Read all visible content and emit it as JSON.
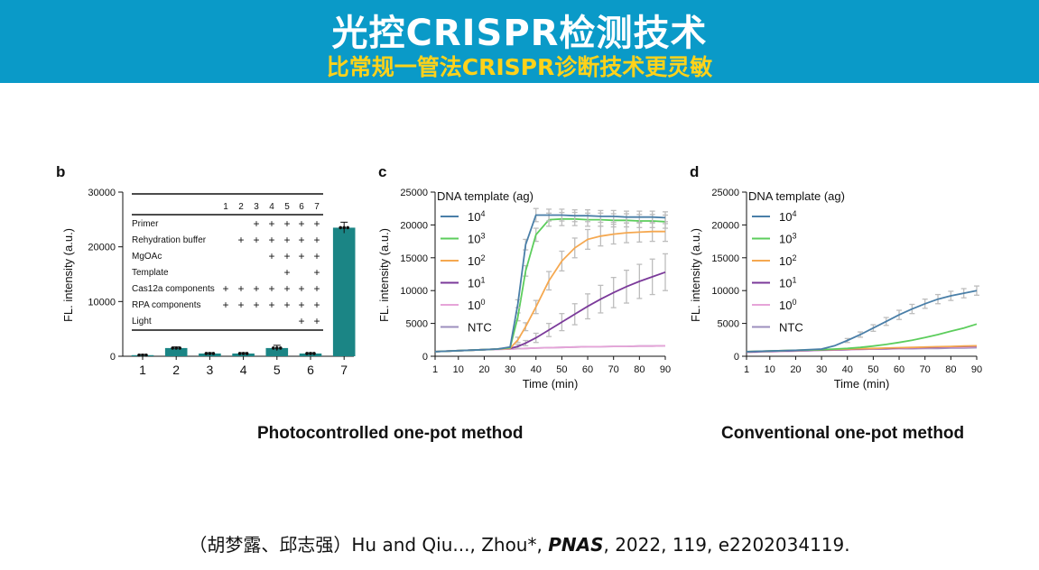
{
  "banner": {
    "title": "光控CRISPR检测技术",
    "subtitle": "比常规一管法CRISPR诊断技术更灵敏"
  },
  "captions": {
    "left": "Photocontrolled one-pot method",
    "right": "Conventional one-pot method"
  },
  "citation": {
    "prefix": "（胡梦露、邱志强）Hu and Qiu..., Zhou*, ",
    "journal": "PNAS",
    "suffix": ", 2022, 119, e2202034119."
  },
  "colors": {
    "banner_bg": "#0a9ac8",
    "subtitle": "#ffd21a",
    "bar": "#1b8585"
  },
  "chart_data": [
    {
      "panel": "b",
      "type": "bar",
      "categories": [
        "1",
        "2",
        "3",
        "4",
        "5",
        "6",
        "7"
      ],
      "values": [
        200,
        1500,
        500,
        500,
        1500,
        500,
        23500
      ],
      "errors": [
        150,
        200,
        150,
        150,
        500,
        150,
        1000
      ],
      "ylabel": "FL. intensity (a.u.)",
      "ylim": [
        0,
        30000
      ],
      "yticks": [
        0,
        10000,
        20000,
        30000
      ],
      "table": {
        "header": [
          "1",
          "2",
          "3",
          "4",
          "5",
          "6",
          "7"
        ],
        "rows": [
          {
            "label": "Primer",
            "marks": [
              "",
              "",
              "+",
              "+",
              "+",
              "+",
              "+"
            ]
          },
          {
            "label": "Rehydration buffer",
            "marks": [
              "",
              "+",
              "+",
              "+",
              "+",
              "+",
              "+"
            ]
          },
          {
            "label": "MgOAc",
            "marks": [
              "",
              "",
              "",
              "+",
              "+",
              "+",
              "+"
            ]
          },
          {
            "label": "Template",
            "marks": [
              "",
              "",
              "",
              "",
              "+",
              "",
              "+"
            ]
          },
          {
            "label": "Cas12a components",
            "marks": [
              "+",
              "+",
              "+",
              "+",
              "+",
              "+",
              "+"
            ]
          },
          {
            "label": "RPA components",
            "marks": [
              "+",
              "+",
              "+",
              "+",
              "+",
              "+",
              "+"
            ]
          },
          {
            "label": "Light",
            "marks": [
              "",
              "",
              "",
              "",
              "",
              "+",
              "+"
            ]
          }
        ]
      }
    },
    {
      "panel": "c",
      "type": "line",
      "xlabel": "Time (min)",
      "ylabel": "FL. intensity (a.u.)",
      "xlim": [
        1,
        90
      ],
      "ylim": [
        0,
        25000
      ],
      "xticks": [
        1,
        10,
        20,
        30,
        40,
        50,
        60,
        70,
        80,
        90
      ],
      "yticks": [
        0,
        5000,
        10000,
        15000,
        20000,
        25000
      ],
      "legend_title": "DNA template (ag)",
      "legend_position": "top-left",
      "x": [
        1,
        10,
        20,
        25,
        30,
        33,
        36,
        40,
        45,
        50,
        55,
        60,
        65,
        70,
        75,
        80,
        85,
        90
      ],
      "series": [
        {
          "name": "10",
          "sup": "4",
          "color": "#4a7fa8",
          "values": [
            700,
            850,
            1000,
            1100,
            1400,
            8000,
            17000,
            21500,
            21500,
            21500,
            21400,
            21400,
            21300,
            21300,
            21200,
            21200,
            21200,
            21100
          ],
          "errors": [
            80,
            80,
            90,
            100,
            150,
            600,
            800,
            1000,
            900,
            900,
            900,
            900,
            900,
            900,
            900,
            900,
            900,
            900
          ]
        },
        {
          "name": "10",
          "sup": "3",
          "color": "#5ccd5c",
          "values": [
            700,
            850,
            1000,
            1100,
            1300,
            6000,
            13000,
            18500,
            20800,
            20900,
            20900,
            20800,
            20800,
            20700,
            20700,
            20600,
            20600,
            20500
          ],
          "errors": [
            80,
            80,
            90,
            100,
            150,
            600,
            800,
            1000,
            1000,
            1000,
            1000,
            1000,
            1000,
            1000,
            1000,
            1000,
            1000,
            1000
          ]
        },
        {
          "name": "10",
          "sup": "2",
          "color": "#f5a850",
          "values": [
            700,
            850,
            1000,
            1100,
            1200,
            2500,
            4500,
            7500,
            11500,
            14500,
            16500,
            17800,
            18300,
            18600,
            18800,
            18900,
            19000,
            19000
          ],
          "errors": [
            80,
            80,
            90,
            100,
            150,
            400,
            600,
            1000,
            1400,
            1500,
            1500,
            1500,
            1500,
            1500,
            1500,
            1500,
            1500,
            1500
          ]
        },
        {
          "name": "10",
          "sup": "1",
          "color": "#7b3a9a",
          "values": [
            700,
            850,
            1000,
            1100,
            1200,
            1500,
            2000,
            2800,
            4000,
            5200,
            6400,
            7600,
            8700,
            9700,
            10600,
            11400,
            12100,
            12800
          ],
          "errors": [
            80,
            80,
            90,
            100,
            150,
            300,
            400,
            700,
            1000,
            1300,
            1600,
            1900,
            2100,
            2300,
            2500,
            2600,
            2700,
            2800
          ]
        },
        {
          "name": "10",
          "sup": "0",
          "color": "#e6a4d8",
          "values": [
            700,
            850,
            1000,
            1050,
            1100,
            1150,
            1200,
            1250,
            1300,
            1350,
            1400,
            1450,
            1450,
            1500,
            1500,
            1550,
            1550,
            1600
          ],
          "errors": [
            80,
            80,
            90,
            100,
            100,
            100,
            100,
            100,
            100,
            100,
            100,
            100,
            100,
            100,
            100,
            100,
            100,
            100
          ]
        },
        {
          "name": "NTC",
          "sup": "",
          "color": "#9c8fbd",
          "values": [
            700,
            850,
            1000,
            1050,
            1100,
            1150,
            1200,
            1250,
            1300,
            1350,
            1400,
            1450,
            1450,
            1500,
            1500,
            1550,
            1550,
            1600
          ],
          "errors": [
            80,
            80,
            90,
            100,
            100,
            100,
            100,
            100,
            100,
            100,
            100,
            100,
            100,
            100,
            100,
            100,
            100,
            100
          ]
        }
      ]
    },
    {
      "panel": "d",
      "type": "line",
      "xlabel": "Time (min)",
      "ylabel": "FL. intensity (a.u.)",
      "xlim": [
        1,
        90
      ],
      "ylim": [
        0,
        25000
      ],
      "xticks": [
        1,
        10,
        20,
        30,
        40,
        50,
        60,
        70,
        80,
        90
      ],
      "yticks": [
        0,
        5000,
        10000,
        15000,
        20000,
        25000
      ],
      "legend_title": "DNA template (ag)",
      "legend_position": "top-left",
      "x": [
        1,
        10,
        20,
        30,
        35,
        40,
        45,
        50,
        55,
        60,
        65,
        70,
        75,
        80,
        85,
        90
      ],
      "series": [
        {
          "name": "10",
          "sup": "4",
          "color": "#4a7fa8",
          "values": [
            700,
            800,
            900,
            1100,
            1600,
            2400,
            3300,
            4300,
            5300,
            6300,
            7200,
            8000,
            8700,
            9200,
            9600,
            10000
          ],
          "errors": [
            80,
            80,
            90,
            100,
            200,
            300,
            400,
            500,
            600,
            700,
            700,
            700,
            700,
            700,
            700,
            700
          ]
        },
        {
          "name": "10",
          "sup": "3",
          "color": "#5ccd5c",
          "values": [
            700,
            800,
            900,
            1000,
            1100,
            1200,
            1350,
            1550,
            1800,
            2100,
            2450,
            2850,
            3300,
            3800,
            4300,
            4900
          ]
        },
        {
          "name": "10",
          "sup": "2",
          "color": "#f5a850",
          "values": [
            700,
            800,
            900,
            1000,
            1050,
            1100,
            1150,
            1200,
            1250,
            1300,
            1350,
            1400,
            1450,
            1500,
            1550,
            1600
          ]
        },
        {
          "name": "10",
          "sup": "1",
          "color": "#7b3a9a",
          "values": [
            650,
            750,
            850,
            950,
            1000,
            1050,
            1100,
            1150,
            1200,
            1250,
            1300,
            1350,
            1400,
            1450,
            1500,
            1550
          ]
        },
        {
          "name": "10",
          "sup": "0",
          "color": "#e6a4d8",
          "values": [
            600,
            700,
            800,
            900,
            950,
            1000,
            1050,
            1100,
            1150,
            1200,
            1250,
            1300,
            1350,
            1400,
            1400,
            1450
          ]
        },
        {
          "name": "NTC",
          "sup": "",
          "color": "#9c8fbd",
          "values": [
            600,
            700,
            800,
            900,
            950,
            1000,
            1050,
            1100,
            1100,
            1150,
            1150,
            1200,
            1200,
            1250,
            1250,
            1300
          ]
        }
      ]
    }
  ]
}
